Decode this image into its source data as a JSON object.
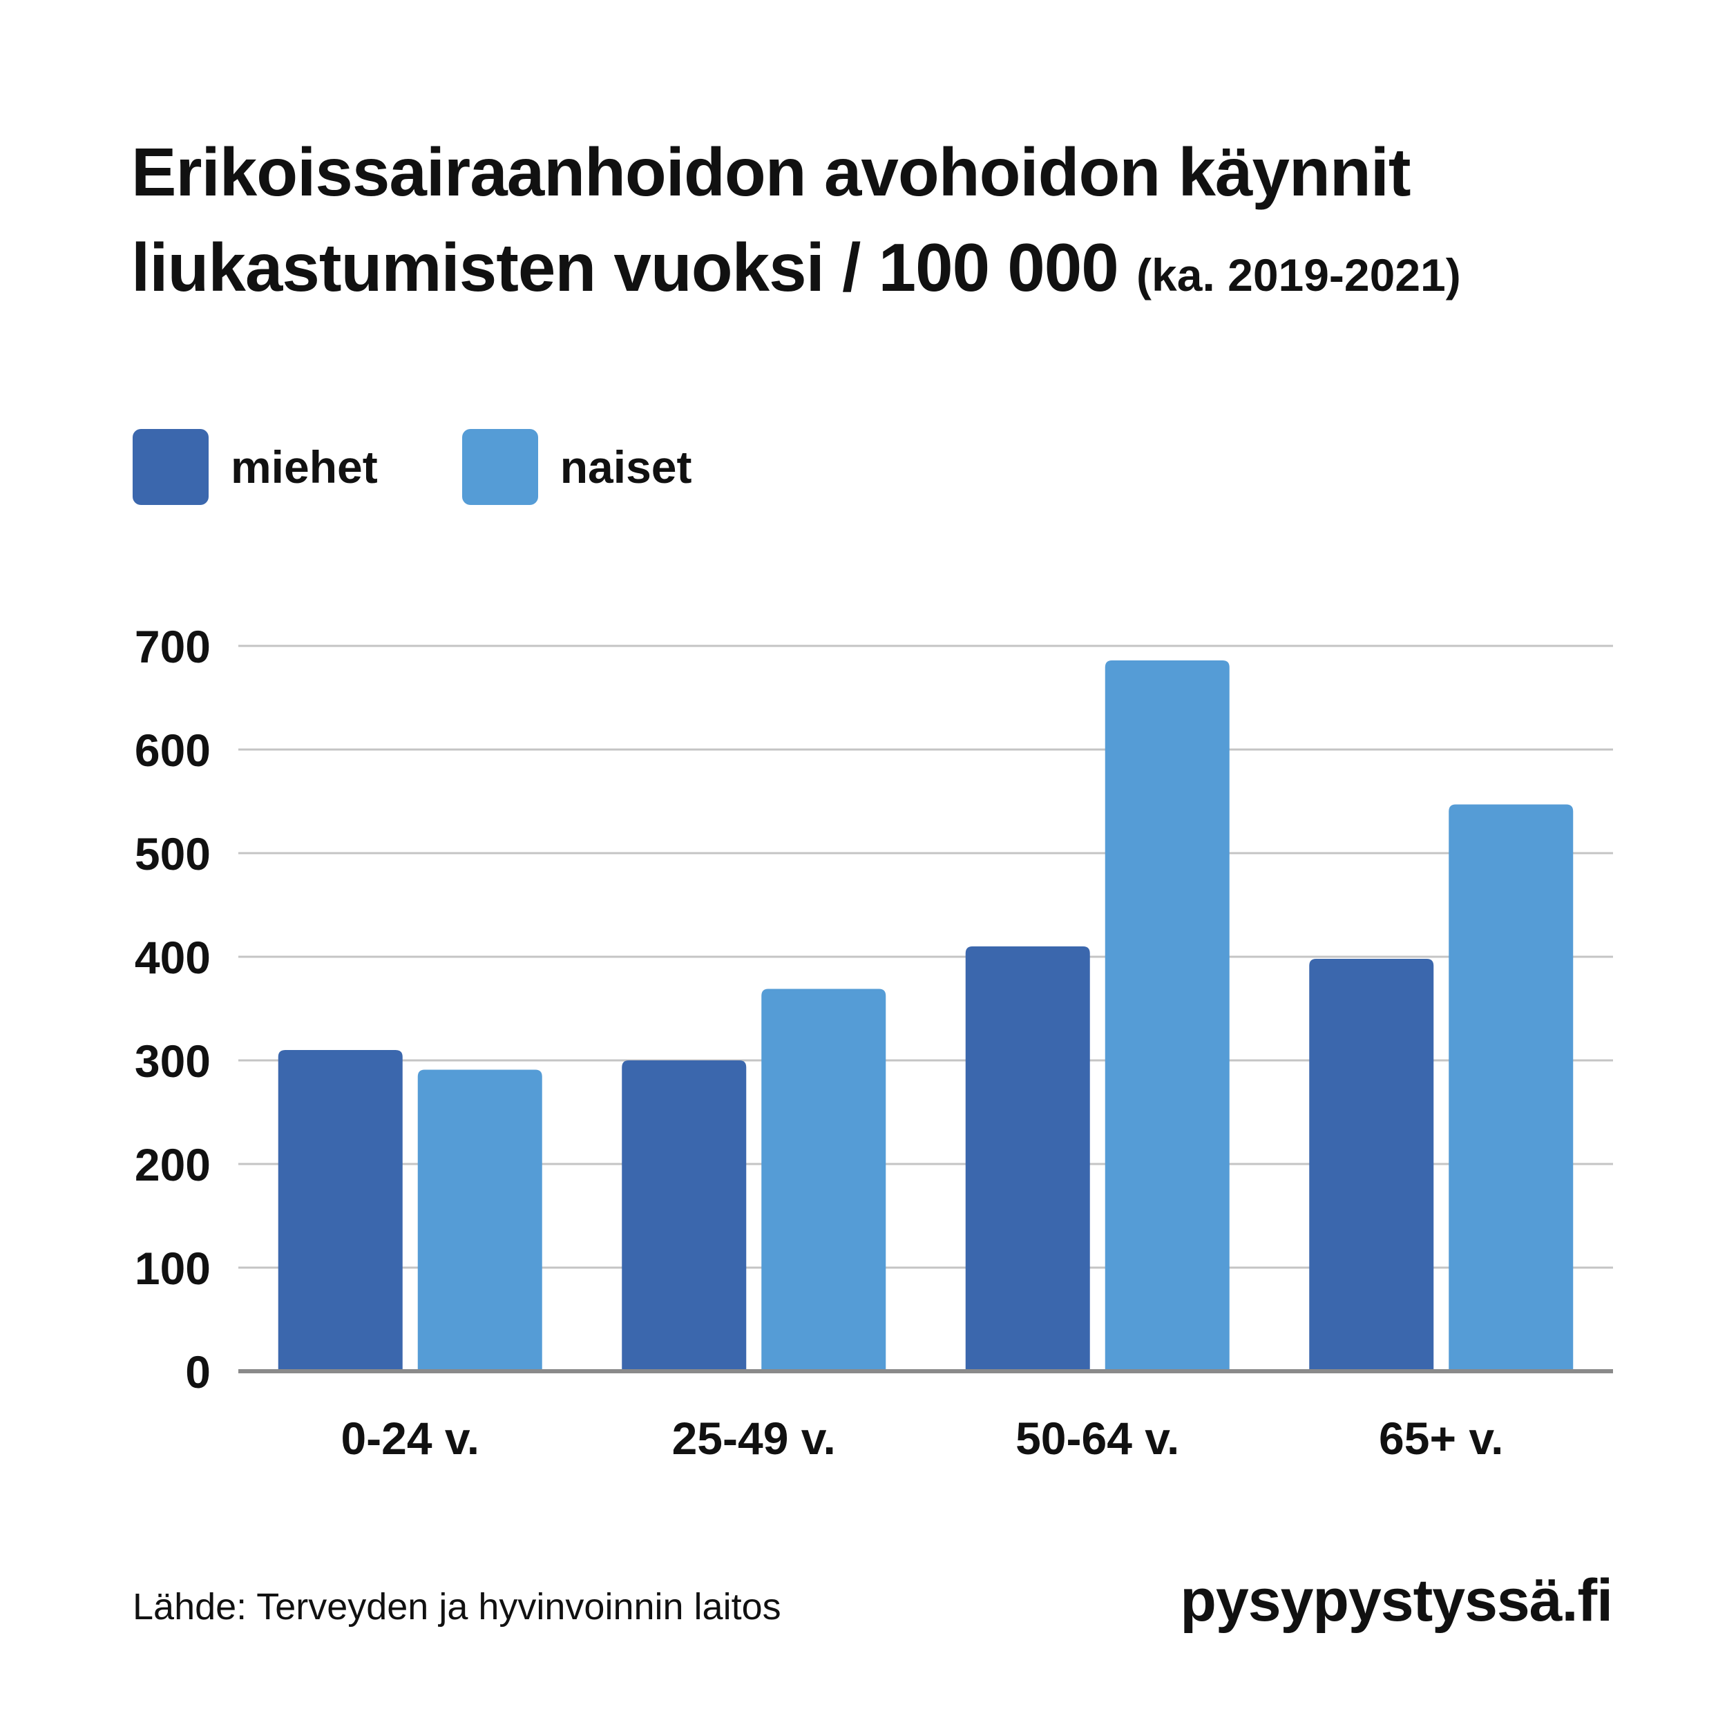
{
  "title": {
    "line1": "Erikoissairaanhoidon avohoidon käynnit",
    "line2_main": "liukastumisten vuoksi / 100 000",
    "line2_sub": "(ka. 2019-2021)"
  },
  "legend": {
    "items": [
      {
        "label": "miehet",
        "color": "#3b67ad"
      },
      {
        "label": "naiset",
        "color": "#559cd6"
      }
    ]
  },
  "chart_data": {
    "type": "bar",
    "title": "Erikoissairaanhoidon avohoidon käynnit liukastumisten vuoksi / 100 000 (ka. 2019-2021)",
    "xlabel": "",
    "ylabel": "",
    "categories": [
      "0-24 v.",
      "25-49 v.",
      "50-64 v.",
      "65+ v."
    ],
    "series": [
      {
        "name": "miehet",
        "values": [
          310,
          300,
          410,
          398
        ],
        "color": "#3b67ad"
      },
      {
        "name": "naiset",
        "values": [
          291,
          369,
          686,
          547
        ],
        "color": "#559cd6"
      }
    ],
    "ylim": [
      0,
      700
    ],
    "yticks": [
      0,
      100,
      200,
      300,
      400,
      500,
      600,
      700
    ],
    "grid": true,
    "legend_position": "top-left"
  },
  "footer": {
    "source": "Lähde: Terveyden ja hyvinvoinnin laitos",
    "brand": "pysypystyssä.fi"
  }
}
